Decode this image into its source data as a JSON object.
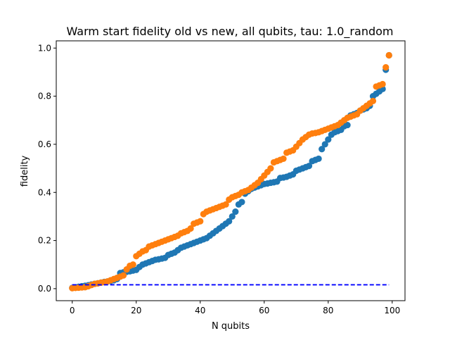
{
  "chart_data": {
    "type": "scatter",
    "title": "Warm start fidelity old vs new, all qubits, tau: 1.0_random",
    "xlabel": "N qubits",
    "ylabel": "fidelity",
    "xlim": [
      -5,
      104
    ],
    "ylim": [
      -0.05,
      1.03
    ],
    "x_ticks": [
      0,
      20,
      40,
      60,
      80,
      100
    ],
    "y_ticks": [
      0.0,
      0.2,
      0.4,
      0.6,
      0.8,
      1.0
    ],
    "x_tick_labels": [
      "0",
      "20",
      "40",
      "60",
      "80",
      "100"
    ],
    "y_tick_labels": [
      "0.0",
      "0.2",
      "0.4",
      "0.6",
      "0.8",
      "1.0"
    ],
    "grid": false,
    "colors": {
      "series_a": "#1f77b4",
      "series_b": "#ff7f0e",
      "reference_line": "#0000ff"
    },
    "series": [
      {
        "x": [
          0,
          1,
          2,
          3,
          4,
          5,
          6,
          7,
          8,
          9,
          10,
          11,
          12,
          13,
          14,
          15,
          16,
          17,
          18,
          19,
          20,
          21,
          22,
          23,
          24,
          25,
          26,
          27,
          28,
          29,
          30,
          31,
          32,
          33,
          34,
          35,
          36,
          37,
          38,
          39,
          40,
          41,
          42,
          43,
          44,
          45,
          46,
          47,
          48,
          49,
          50,
          51,
          52,
          53,
          54,
          55,
          56,
          57,
          58,
          59,
          60,
          61,
          62,
          63,
          64,
          65,
          66,
          67,
          68,
          69,
          70,
          71,
          72,
          73,
          74,
          75,
          76,
          77,
          78,
          79,
          80,
          81,
          82,
          83,
          84,
          85,
          86,
          87,
          88,
          89,
          90,
          91,
          92,
          93,
          94,
          95,
          96,
          97,
          98,
          99
        ],
        "y": [
          0.003,
          0.005,
          0.008,
          0.01,
          0.012,
          0.014,
          0.017,
          0.02,
          0.022,
          0.025,
          0.028,
          0.03,
          0.032,
          0.035,
          0.04,
          0.065,
          0.068,
          0.07,
          0.072,
          0.075,
          0.078,
          0.09,
          0.1,
          0.105,
          0.11,
          0.115,
          0.12,
          0.122,
          0.125,
          0.128,
          0.14,
          0.145,
          0.15,
          0.16,
          0.17,
          0.175,
          0.18,
          0.185,
          0.19,
          0.195,
          0.2,
          0.205,
          0.21,
          0.22,
          0.23,
          0.24,
          0.25,
          0.26,
          0.27,
          0.28,
          0.3,
          0.32,
          0.35,
          0.36,
          0.395,
          0.405,
          0.415,
          0.42,
          0.425,
          0.43,
          0.435,
          0.437,
          0.44,
          0.442,
          0.445,
          0.46,
          0.462,
          0.465,
          0.47,
          0.475,
          0.49,
          0.495,
          0.5,
          0.505,
          0.51,
          0.53,
          0.535,
          0.54,
          0.58,
          0.6,
          0.62,
          0.64,
          0.65,
          0.655,
          0.66,
          0.675,
          0.68,
          0.72,
          0.725,
          0.73,
          0.74,
          0.745,
          0.75,
          0.76,
          0.8,
          0.81,
          0.82,
          0.83,
          0.91,
          0.97
        ]
      },
      {
        "x": [
          0,
          1,
          2,
          3,
          4,
          5,
          6,
          7,
          8,
          9,
          10,
          11,
          12,
          13,
          14,
          15,
          16,
          17,
          18,
          19,
          20,
          21,
          22,
          23,
          24,
          25,
          26,
          27,
          28,
          29,
          30,
          31,
          32,
          33,
          34,
          35,
          36,
          37,
          38,
          39,
          40,
          41,
          42,
          43,
          44,
          45,
          46,
          47,
          48,
          49,
          50,
          51,
          52,
          53,
          54,
          55,
          56,
          57,
          58,
          59,
          60,
          61,
          62,
          63,
          64,
          65,
          66,
          67,
          68,
          69,
          70,
          71,
          72,
          73,
          74,
          75,
          76,
          77,
          78,
          79,
          80,
          81,
          82,
          83,
          84,
          85,
          86,
          87,
          88,
          89,
          90,
          91,
          92,
          93,
          94,
          95,
          96,
          97,
          98,
          99
        ],
        "y": [
          0.002,
          0.003,
          0.004,
          0.005,
          0.006,
          0.01,
          0.015,
          0.02,
          0.022,
          0.025,
          0.027,
          0.03,
          0.035,
          0.04,
          0.045,
          0.05,
          0.055,
          0.08,
          0.095,
          0.1,
          0.135,
          0.145,
          0.155,
          0.16,
          0.175,
          0.18,
          0.185,
          0.19,
          0.195,
          0.2,
          0.205,
          0.21,
          0.215,
          0.22,
          0.23,
          0.235,
          0.24,
          0.25,
          0.27,
          0.275,
          0.28,
          0.31,
          0.32,
          0.325,
          0.33,
          0.335,
          0.34,
          0.345,
          0.35,
          0.37,
          0.38,
          0.385,
          0.39,
          0.4,
          0.405,
          0.41,
          0.42,
          0.43,
          0.44,
          0.455,
          0.47,
          0.485,
          0.5,
          0.525,
          0.53,
          0.535,
          0.54,
          0.565,
          0.57,
          0.575,
          0.59,
          0.605,
          0.62,
          0.63,
          0.64,
          0.645,
          0.647,
          0.65,
          0.655,
          0.66,
          0.665,
          0.67,
          0.675,
          0.68,
          0.69,
          0.7,
          0.71,
          0.715,
          0.72,
          0.725,
          0.74,
          0.75,
          0.76,
          0.77,
          0.78,
          0.84,
          0.845,
          0.85,
          0.92,
          0.97
        ]
      }
    ],
    "reference_line": {
      "style": "dashed",
      "y": 0.016,
      "x_start": 0,
      "x_end": 99
    }
  }
}
